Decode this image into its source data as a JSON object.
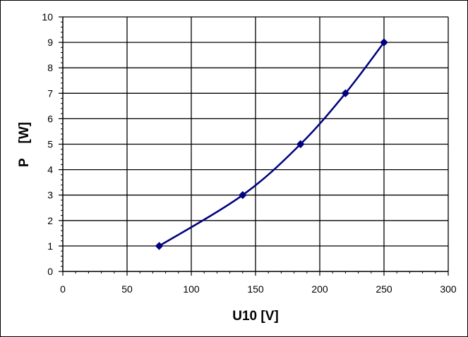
{
  "chart_data": {
    "type": "scatter",
    "title": "",
    "xlabel": "U10 [V]",
    "ylabel": "P    [W]",
    "xlim": [
      0,
      300
    ],
    "ylim": [
      0,
      10
    ],
    "x_ticks": [
      "0",
      "50",
      "100",
      "150",
      "200",
      "250",
      "300"
    ],
    "y_ticks": [
      "0",
      "1",
      "2",
      "3",
      "4",
      "5",
      "6",
      "7",
      "8",
      "9",
      "10"
    ],
    "grid": true,
    "legend": "none",
    "line_style": "smoothed line with diamond markers",
    "series": [
      {
        "x": [
          75,
          140,
          185,
          220,
          250
        ],
        "y": [
          1,
          3,
          5,
          7,
          9
        ],
        "color": "#000080"
      }
    ]
  }
}
